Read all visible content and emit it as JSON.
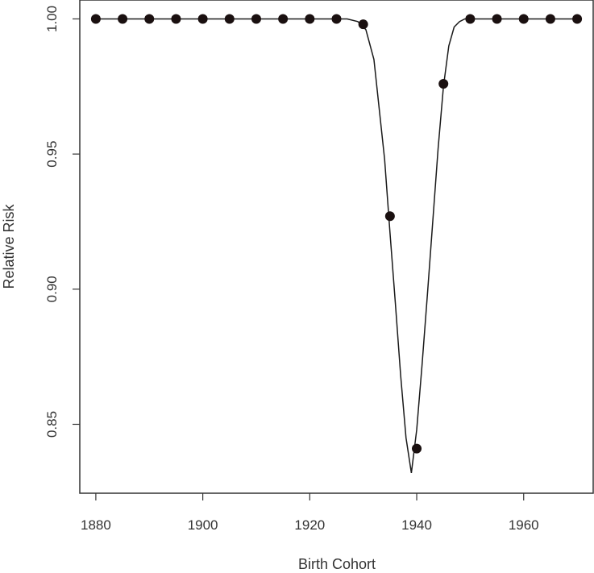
{
  "chart_data": {
    "type": "line",
    "title": "",
    "xlabel": "Birth Cohort",
    "ylabel": "Relative Risk",
    "xlim": [
      1877,
      1973
    ],
    "ylim": [
      0.8245,
      1.007
    ],
    "x_ticks": [
      1880,
      1900,
      1920,
      1940,
      1960
    ],
    "x_tick_labels": [
      "1880",
      "1900",
      "1920",
      "1940",
      "1960"
    ],
    "y_ticks": [
      0.85,
      0.9,
      0.95,
      1.0
    ],
    "y_tick_labels": [
      "0.85",
      "0.90",
      "0.95",
      "1.00"
    ],
    "grid": false,
    "legend": "none",
    "points": {
      "x": [
        1880,
        1885,
        1890,
        1895,
        1900,
        1905,
        1910,
        1915,
        1920,
        1925,
        1930,
        1935,
        1940,
        1945,
        1950,
        1955,
        1960,
        1965,
        1970
      ],
      "y": [
        1.0,
        1.0,
        1.0,
        1.0,
        1.0,
        1.0,
        1.0,
        1.0,
        1.0,
        1.0,
        0.998,
        0.927,
        0.841,
        0.976,
        1.0,
        1.0,
        1.0,
        1.0,
        1.0
      ]
    },
    "curve": {
      "x": [
        1880,
        1927,
        1929,
        1930.5,
        1932,
        1934,
        1935,
        1936,
        1937,
        1938,
        1939,
        1940,
        1941,
        1942,
        1943,
        1944,
        1945,
        1946,
        1947,
        1948,
        1949,
        1950,
        1970
      ],
      "y": [
        1.0,
        1.0,
        0.999,
        0.996,
        0.985,
        0.948,
        0.921,
        0.895,
        0.868,
        0.845,
        0.832,
        0.848,
        0.872,
        0.898,
        0.925,
        0.952,
        0.975,
        0.99,
        0.997,
        0.999,
        1.0,
        1.0,
        1.0
      ]
    },
    "colors": {
      "line": "#1a1a1a",
      "points": "#1a1010",
      "axis": "#333333"
    }
  }
}
